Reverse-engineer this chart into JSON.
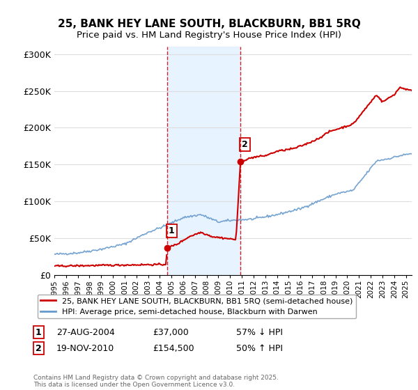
{
  "title": "25, BANK HEY LANE SOUTH, BLACKBURN, BB1 5RQ",
  "subtitle": "Price paid vs. HM Land Registry's House Price Index (HPI)",
  "ylim": [
    0,
    310000
  ],
  "yticks": [
    0,
    50000,
    100000,
    150000,
    200000,
    250000,
    300000
  ],
  "ytick_labels": [
    "£0",
    "£50K",
    "£100K",
    "£150K",
    "£200K",
    "£250K",
    "£300K"
  ],
  "background_color": "#ffffff",
  "plot_bg_color": "#ffffff",
  "grid_color": "#dddddd",
  "sale1_date": 2004.65,
  "sale1_price": 37000,
  "sale2_date": 2010.89,
  "sale2_price": 154500,
  "shade_color": "#ddeeff",
  "vline_color": "#cc0000",
  "legend1_label": "25, BANK HEY LANE SOUTH, BLACKBURN, BB1 5RQ (semi-detached house)",
  "legend2_label": "HPI: Average price, semi-detached house, Blackburn with Darwen",
  "line1_color": "#cc0000",
  "line2_color": "#6699cc",
  "footer": "Contains HM Land Registry data © Crown copyright and database right 2025.\nThis data is licensed under the Open Government Licence v3.0.",
  "xmin": 1995.0,
  "xmax": 2025.5
}
